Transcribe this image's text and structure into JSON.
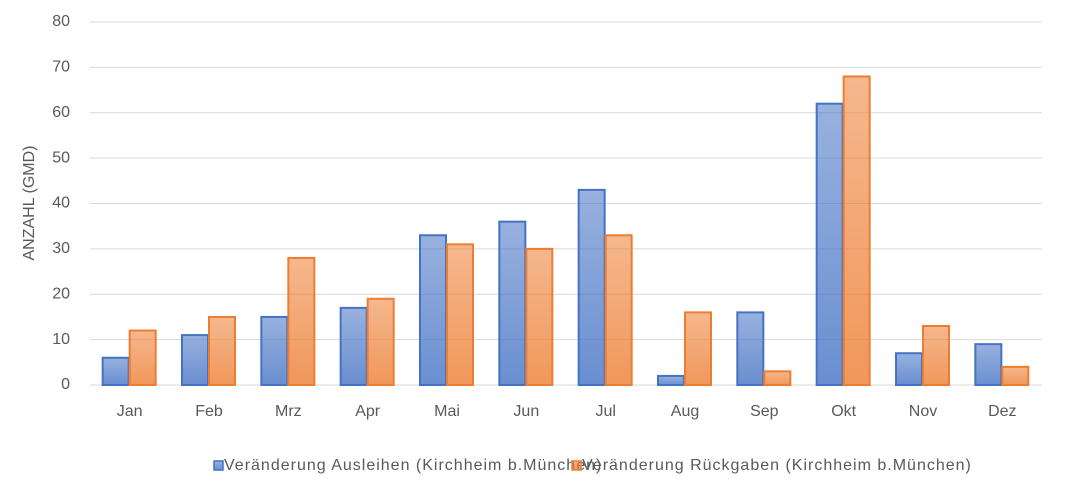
{
  "chart_data": {
    "type": "bar",
    "categories": [
      "Jan",
      "Feb",
      "Mrz",
      "Apr",
      "Mai",
      "Jun",
      "Jul",
      "Aug",
      "Sep",
      "Okt",
      "Nov",
      "Dez"
    ],
    "series": [
      {
        "name": "Veränderung Ausleihen (Kirchheim b.München)",
        "color": "#4472c4",
        "values": [
          6,
          11,
          15,
          17,
          33,
          36,
          43,
          2,
          16,
          62,
          7,
          9
        ]
      },
      {
        "name": "Veränderung Rückgaben (Kirchheim b.München)",
        "color": "#ed7d31",
        "values": [
          12,
          15,
          28,
          19,
          31,
          30,
          33,
          16,
          3,
          68,
          13,
          4
        ]
      }
    ],
    "y_label": "ANZAHL (GMD)",
    "ylim": [
      0,
      80
    ],
    "yticks": [
      0,
      10,
      20,
      30,
      40,
      50,
      60,
      70,
      80
    ],
    "grid": true,
    "legend": "bottom"
  }
}
